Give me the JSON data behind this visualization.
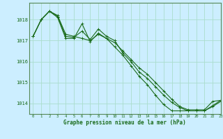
{
  "title": "Graphe pression niveau de la mer (hPa)",
  "bg_color": "#cceeff",
  "grid_color": "#aaddcc",
  "line_color": "#1a6b1a",
  "marker_color": "#1a6b1a",
  "xlim": [
    -0.5,
    23
  ],
  "ylim": [
    1013.5,
    1018.8
  ],
  "yticks": [
    1014,
    1015,
    1016,
    1017,
    1018
  ],
  "xticks": [
    0,
    1,
    2,
    3,
    4,
    5,
    6,
    7,
    8,
    9,
    10,
    11,
    12,
    13,
    14,
    15,
    16,
    17,
    18,
    19,
    20,
    21,
    22,
    23
  ],
  "series": [
    [
      1017.2,
      1018.0,
      1018.4,
      1018.2,
      1017.3,
      1017.2,
      1017.1,
      1017.0,
      1017.3,
      1017.1,
      1016.9,
      1016.5,
      1016.1,
      1015.7,
      1015.4,
      1015.0,
      1014.6,
      1014.2,
      1013.85,
      1013.7,
      1013.7,
      1013.7,
      1014.1,
      1014.15
    ],
    [
      1017.2,
      1018.0,
      1018.4,
      1018.15,
      1017.2,
      1017.15,
      1017.45,
      1017.05,
      1017.55,
      1017.2,
      1017.0,
      1016.4,
      1016.0,
      1015.5,
      1015.2,
      1014.8,
      1014.4,
      1014.05,
      1013.8,
      1013.65,
      1013.65,
      1013.65,
      1013.9,
      1014.15
    ],
    [
      1017.2,
      1018.0,
      1018.4,
      1018.1,
      1017.1,
      1017.1,
      1017.8,
      1016.95,
      1017.35,
      1017.1,
      1016.7,
      1016.3,
      1015.8,
      1015.3,
      1014.9,
      1014.4,
      1013.95,
      1013.65,
      1013.65,
      1013.65,
      1013.65,
      1013.65,
      1013.85,
      1014.1
    ]
  ]
}
